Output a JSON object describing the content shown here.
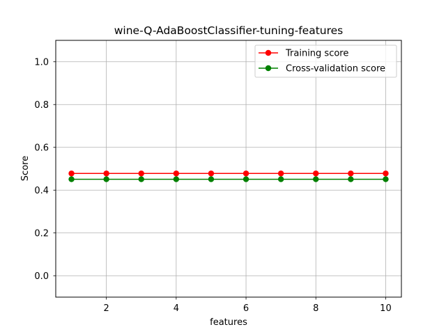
{
  "chart_data": {
    "type": "line",
    "title": "wine-Q-AdaBoostClassifier-tuning-features",
    "xlabel": "features",
    "ylabel": "Score",
    "x": [
      1,
      2,
      3,
      4,
      5,
      6,
      7,
      8,
      9,
      10
    ],
    "xticks": [
      2,
      4,
      6,
      8,
      10
    ],
    "xlim": [
      0.55,
      10.45
    ],
    "yticks": [
      "0.0",
      "0.2",
      "0.4",
      "0.6",
      "0.8",
      "1.0"
    ],
    "ylim": [
      -0.1,
      1.1
    ],
    "grid": true,
    "legend_position": "top-right",
    "series": [
      {
        "name": "Training score",
        "color": "#ff0000",
        "marker": "circle",
        "values": [
          0.478,
          0.478,
          0.478,
          0.478,
          0.478,
          0.478,
          0.478,
          0.478,
          0.478,
          0.478
        ]
      },
      {
        "name": "Cross-validation score",
        "color": "#008000",
        "marker": "circle",
        "values": [
          0.451,
          0.451,
          0.451,
          0.451,
          0.451,
          0.451,
          0.451,
          0.451,
          0.451,
          0.451
        ]
      }
    ]
  }
}
